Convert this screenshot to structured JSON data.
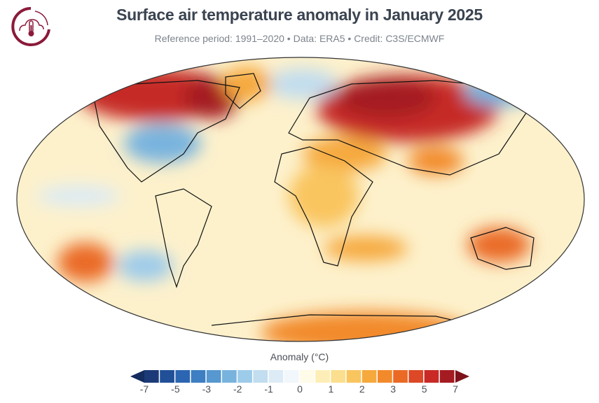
{
  "header": {
    "title": "Surface air temperature anomaly in January 2025",
    "subtitle": "Reference period: 1991–2020 • Data: ERA5 • Credit: C3S/ECMWF",
    "logo_icon": "cloud-thermometer-icon",
    "logo_color": "#8b1a3a"
  },
  "map": {
    "variable": "Surface air temperature anomaly",
    "projection": "Robinson"
  },
  "colorbar": {
    "label": "Anomaly (°C)",
    "ticks": [
      "-7",
      "-5",
      "-3",
      "-2",
      "-1",
      "0",
      "1",
      "2",
      "3",
      "5",
      "7"
    ],
    "colors": [
      "#1c3a78",
      "#214f98",
      "#2c66b2",
      "#3d7fc2",
      "#5698cf",
      "#78b3de",
      "#9dcbea",
      "#c1ddef",
      "#dcebf5",
      "#f1f7fb",
      "#fefbe8",
      "#fdeeb8",
      "#fbdf8e",
      "#f9c55f",
      "#f6a93c",
      "#f28a2b",
      "#ea6a25",
      "#dd4826",
      "#c92a25",
      "#a41b22"
    ],
    "under_color": "#142c5e",
    "over_color": "#7e1119"
  }
}
